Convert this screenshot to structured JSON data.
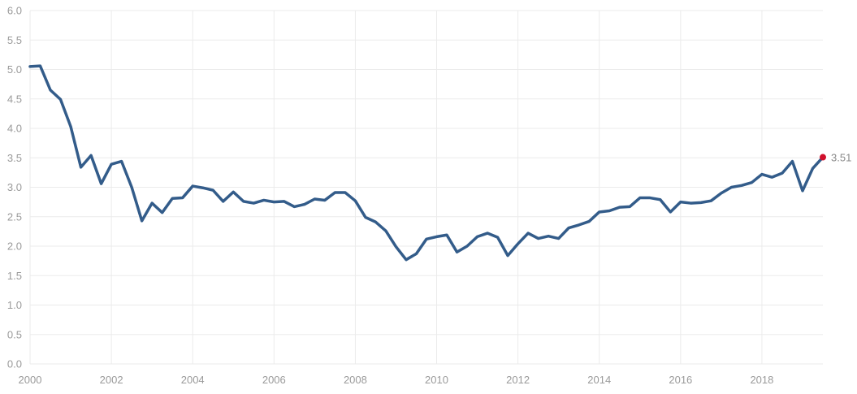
{
  "chart_data": {
    "type": "line",
    "x_axis": {
      "min": 2000,
      "max": 2019.5,
      "ticks": [
        2000,
        2002,
        2004,
        2006,
        2008,
        2010,
        2012,
        2014,
        2016,
        2018
      ],
      "tick_labels": [
        "2000",
        "2002",
        "2004",
        "2006",
        "2008",
        "2010",
        "2012",
        "2014",
        "2016",
        "2018"
      ]
    },
    "y_axis": {
      "min": 0,
      "max": 6,
      "ticks": [
        0,
        0.5,
        1,
        1.5,
        2,
        2.5,
        3,
        3.5,
        4,
        4.5,
        5,
        5.5,
        6
      ],
      "tick_labels": [
        "0.0",
        "0.5",
        "1.0",
        "1.5",
        "2.0",
        "2.5",
        "3.0",
        "3.5",
        "4.0",
        "4.5",
        "5.0",
        "5.5",
        "6.0"
      ]
    },
    "grid": true,
    "series": [
      {
        "color": "#335c8a",
        "x": [
          2000.0,
          2000.25,
          2000.5,
          2000.75,
          2001.0,
          2001.25,
          2001.5,
          2001.75,
          2002.0,
          2002.25,
          2002.5,
          2002.75,
          2003.0,
          2003.25,
          2003.5,
          2003.75,
          2004.0,
          2004.25,
          2004.5,
          2004.75,
          2005.0,
          2005.25,
          2005.5,
          2005.75,
          2006.0,
          2006.25,
          2006.5,
          2006.75,
          2007.0,
          2007.25,
          2007.5,
          2007.75,
          2008.0,
          2008.25,
          2008.5,
          2008.75,
          2009.0,
          2009.25,
          2009.5,
          2009.75,
          2010.0,
          2010.25,
          2010.5,
          2010.75,
          2011.0,
          2011.25,
          2011.5,
          2011.75,
          2012.0,
          2012.25,
          2012.5,
          2012.75,
          2013.0,
          2013.25,
          2013.5,
          2013.75,
          2014.0,
          2014.25,
          2014.5,
          2014.75,
          2015.0,
          2015.25,
          2015.5,
          2015.75,
          2016.0,
          2016.25,
          2016.5,
          2016.75,
          2017.0,
          2017.25,
          2017.5,
          2017.75,
          2018.0,
          2018.25,
          2018.5,
          2018.75,
          2019.0,
          2019.25,
          2019.5
        ],
        "y": [
          5.05,
          5.06,
          4.65,
          4.49,
          4.03,
          3.34,
          3.54,
          3.06,
          3.39,
          3.44,
          3.0,
          2.43,
          2.73,
          2.57,
          2.81,
          2.82,
          3.02,
          2.99,
          2.95,
          2.76,
          2.92,
          2.76,
          2.73,
          2.78,
          2.75,
          2.76,
          2.67,
          2.71,
          2.8,
          2.78,
          2.91,
          2.91,
          2.77,
          2.49,
          2.41,
          2.26,
          1.99,
          1.77,
          1.87,
          2.12,
          2.16,
          2.19,
          1.9,
          2.0,
          2.16,
          2.22,
          2.15,
          1.84,
          2.04,
          2.22,
          2.13,
          2.17,
          2.13,
          2.31,
          2.36,
          2.42,
          2.58,
          2.6,
          2.66,
          2.67,
          2.82,
          2.82,
          2.79,
          2.58,
          2.75,
          2.73,
          2.74,
          2.77,
          2.9,
          3.0,
          3.03,
          3.08,
          3.22,
          3.17,
          3.24,
          3.44,
          2.94,
          3.32,
          3.51
        ]
      }
    ],
    "last_point": {
      "x": 2019.5,
      "y": 3.51,
      "label": "3.51",
      "color": "#d0102c"
    }
  }
}
